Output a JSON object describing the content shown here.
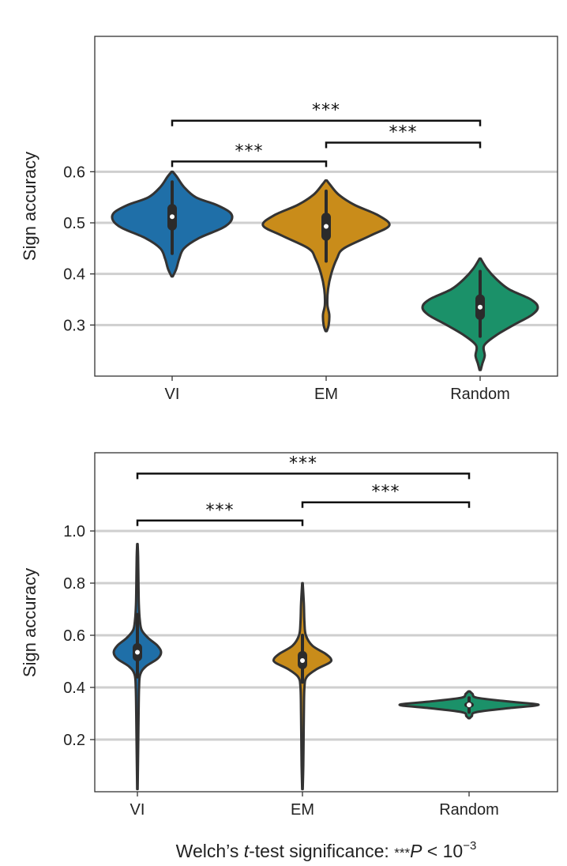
{
  "footnote": {
    "prefix": "Welch’s ",
    "t_italic": "t",
    "middle": "-test significance: ",
    "stars": "***",
    "p_italic": "P",
    "lt": " < 10",
    "exponent": "−3"
  },
  "chart_data": [
    {
      "type": "violin",
      "title": "",
      "xlabel": "",
      "ylabel": "Sign accuracy",
      "ylim": [
        0.2,
        0.865
      ],
      "yticks": [
        0.3,
        0.4,
        0.5,
        0.6
      ],
      "ytick_labels": [
        "0.3",
        "0.4",
        "0.5",
        "0.6"
      ],
      "grid": "horizontal",
      "categories": [
        "VI",
        "EM",
        "Random"
      ],
      "colors": [
        "#1f6fa8",
        "#c98c1a",
        "#1b9169"
      ],
      "violins": [
        {
          "category": "VI",
          "median": 0.512,
          "q1": 0.485,
          "q3": 0.537,
          "whisker_low": 0.44,
          "whisker_high": 0.58,
          "profile": [
            [
              0.395,
              0.01
            ],
            [
              0.41,
              0.07
            ],
            [
              0.43,
              0.12
            ],
            [
              0.45,
              0.2
            ],
            [
              0.47,
              0.45
            ],
            [
              0.49,
              0.85
            ],
            [
              0.505,
              1.0
            ],
            [
              0.52,
              0.98
            ],
            [
              0.535,
              0.75
            ],
            [
              0.55,
              0.4
            ],
            [
              0.57,
              0.2
            ],
            [
              0.59,
              0.08
            ],
            [
              0.6,
              0.01
            ]
          ]
        },
        {
          "category": "EM",
          "median": 0.493,
          "q1": 0.465,
          "q3": 0.52,
          "whisker_low": 0.425,
          "whisker_high": 0.562,
          "profile": [
            [
              0.288,
              0.01
            ],
            [
              0.3,
              0.04
            ],
            [
              0.32,
              0.05
            ],
            [
              0.34,
              0.02
            ],
            [
              0.37,
              0.03
            ],
            [
              0.4,
              0.08
            ],
            [
              0.43,
              0.17
            ],
            [
              0.45,
              0.28
            ],
            [
              0.475,
              0.7
            ],
            [
              0.495,
              1.0
            ],
            [
              0.515,
              0.82
            ],
            [
              0.535,
              0.45
            ],
            [
              0.555,
              0.2
            ],
            [
              0.575,
              0.06
            ],
            [
              0.583,
              0.01
            ]
          ]
        },
        {
          "category": "Random",
          "median": 0.335,
          "q1": 0.31,
          "q3": 0.36,
          "whisker_low": 0.278,
          "whisker_high": 0.405,
          "profile": [
            [
              0.212,
              0.01
            ],
            [
              0.225,
              0.04
            ],
            [
              0.24,
              0.08
            ],
            [
              0.26,
              0.07
            ],
            [
              0.28,
              0.28
            ],
            [
              0.3,
              0.58
            ],
            [
              0.32,
              0.9
            ],
            [
              0.335,
              1.0
            ],
            [
              0.35,
              0.88
            ],
            [
              0.37,
              0.5
            ],
            [
              0.39,
              0.28
            ],
            [
              0.41,
              0.12
            ],
            [
              0.43,
              0.01
            ]
          ]
        }
      ],
      "significance": [
        {
          "from": 0,
          "to": 1,
          "level": 0.62,
          "label": "***"
        },
        {
          "from": 1,
          "to": 2,
          "level": 0.657,
          "label": "***"
        },
        {
          "from": 0,
          "to": 2,
          "level": 0.7,
          "label": "***"
        }
      ]
    },
    {
      "type": "violin",
      "title": "",
      "xlabel": "",
      "ylabel": "Sign accuracy",
      "ylim": [
        0.0,
        1.3
      ],
      "yticks": [
        0.2,
        0.4,
        0.6,
        0.8,
        1.0
      ],
      "ytick_labels": [
        "0.2",
        "0.4",
        "0.6",
        "0.8",
        "1.0"
      ],
      "grid": "horizontal",
      "categories": [
        "VI",
        "EM",
        "Random"
      ],
      "colors": [
        "#1f6fa8",
        "#c98c1a",
        "#1b9169"
      ],
      "violins": [
        {
          "category": "VI",
          "median": 0.535,
          "q1": 0.5,
          "q3": 0.57,
          "whisker_low": 0.44,
          "whisker_high": 0.68,
          "profile": [
            [
              0.01,
              0.01
            ],
            [
              0.15,
              0.03
            ],
            [
              0.3,
              0.05
            ],
            [
              0.4,
              0.07
            ],
            [
              0.45,
              0.12
            ],
            [
              0.48,
              0.35
            ],
            [
              0.51,
              0.85
            ],
            [
              0.535,
              1.0
            ],
            [
              0.56,
              0.85
            ],
            [
              0.59,
              0.45
            ],
            [
              0.62,
              0.18
            ],
            [
              0.66,
              0.1
            ],
            [
              0.72,
              0.06
            ],
            [
              0.8,
              0.045
            ],
            [
              0.9,
              0.03
            ],
            [
              0.95,
              0.01
            ]
          ]
        },
        {
          "category": "EM",
          "median": 0.503,
          "q1": 0.47,
          "q3": 0.54,
          "whisker_low": 0.42,
          "whisker_high": 0.6,
          "profile": [
            [
              0.01,
              0.01
            ],
            [
              0.1,
              0.03
            ],
            [
              0.2,
              0.04
            ],
            [
              0.3,
              0.05
            ],
            [
              0.4,
              0.07
            ],
            [
              0.44,
              0.15
            ],
            [
              0.47,
              0.5
            ],
            [
              0.495,
              0.95
            ],
            [
              0.51,
              1.0
            ],
            [
              0.53,
              0.8
            ],
            [
              0.56,
              0.35
            ],
            [
              0.6,
              0.12
            ],
            [
              0.65,
              0.07
            ],
            [
              0.72,
              0.05
            ],
            [
              0.8,
              0.01
            ]
          ]
        },
        {
          "category": "Random",
          "median": 0.333,
          "q1": 0.322,
          "q3": 0.345,
          "whisker_low": 0.305,
          "whisker_high": 0.36,
          "profile": [
            [
              0.282,
              0.01
            ],
            [
              0.29,
              0.04
            ],
            [
              0.305,
              0.1
            ],
            [
              0.32,
              0.55
            ],
            [
              0.333,
              1.0
            ],
            [
              0.345,
              0.6
            ],
            [
              0.36,
              0.12
            ],
            [
              0.375,
              0.05
            ],
            [
              0.385,
              0.01
            ]
          ]
        }
      ],
      "significance": [
        {
          "from": 0,
          "to": 1,
          "level": 1.04,
          "label": "***"
        },
        {
          "from": 1,
          "to": 2,
          "level": 1.11,
          "label": "***"
        },
        {
          "from": 0,
          "to": 2,
          "level": 1.22,
          "label": "***"
        }
      ]
    }
  ]
}
